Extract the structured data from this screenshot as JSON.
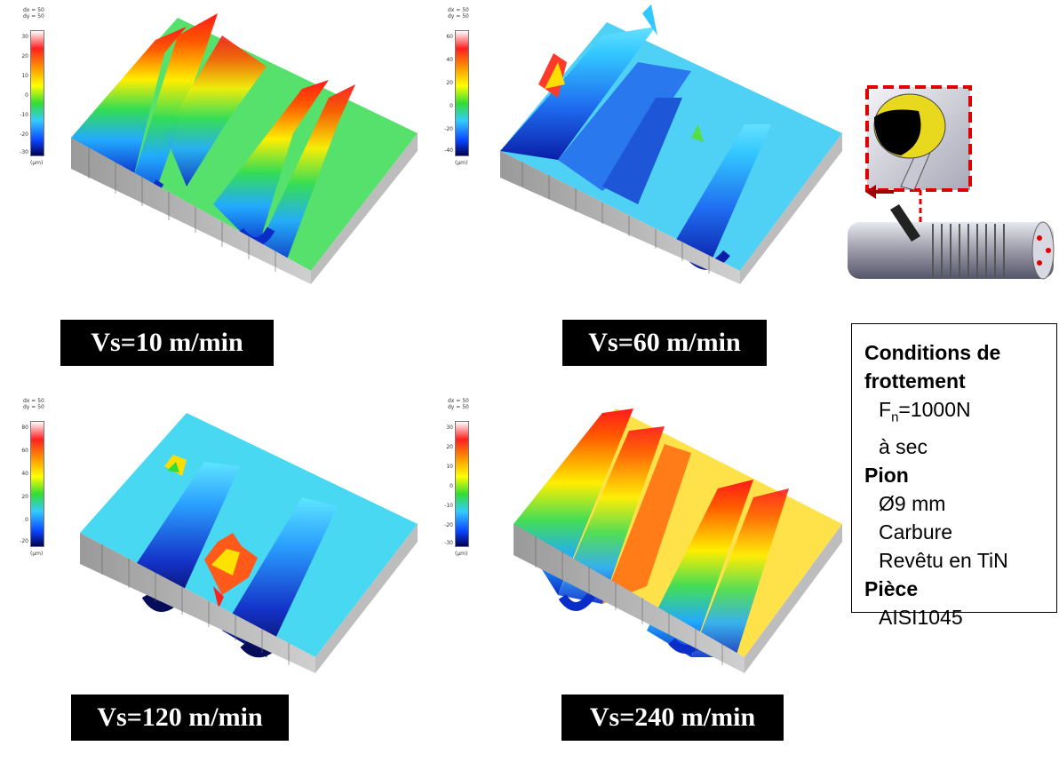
{
  "colors": {
    "accent_red": "#e00000",
    "label_bg": "#000000",
    "label_text": "#ffffff",
    "surface_low": "#0a2cc8",
    "surface_high": "#ff2020"
  },
  "colorbar_header": "dx = 50\ndy = 50",
  "colorbar_unit": "(µm)",
  "plots": [
    {
      "speed_label": "Vs=10 m/min",
      "colorbar_ticks": [
        "30",
        "20",
        "10",
        "0",
        "-10",
        "-20",
        "-30"
      ],
      "surface_color": "green-yellow-red ridges"
    },
    {
      "speed_label": "Vs=60 m/min",
      "colorbar_ticks": [
        "60",
        "40",
        "20",
        "0",
        "-20",
        "-40"
      ],
      "surface_color": "blue-cyan"
    },
    {
      "speed_label": "Vs=120 m/min",
      "colorbar_ticks": [
        "80",
        "60",
        "40",
        "20",
        "0",
        "-20"
      ],
      "surface_color": "cyan-blue"
    },
    {
      "speed_label": "Vs=240 m/min",
      "colorbar_ticks": [
        "30",
        "20",
        "10",
        "0",
        "-10",
        "-20",
        "-30"
      ],
      "surface_color": "yellow-red ridges"
    }
  ],
  "conditions": {
    "friction_title": "Conditions de frottement",
    "force_symbol": "F",
    "force_subscript": "n",
    "force_value": "=1000N",
    "lubrication": "à sec",
    "pin_title": "Pion",
    "pin_diameter": "Ø9 mm",
    "pin_material": "Carbure",
    "pin_coating": "Revêtu en TiN",
    "part_title": "Pièce",
    "part_material": "AISI1045"
  }
}
